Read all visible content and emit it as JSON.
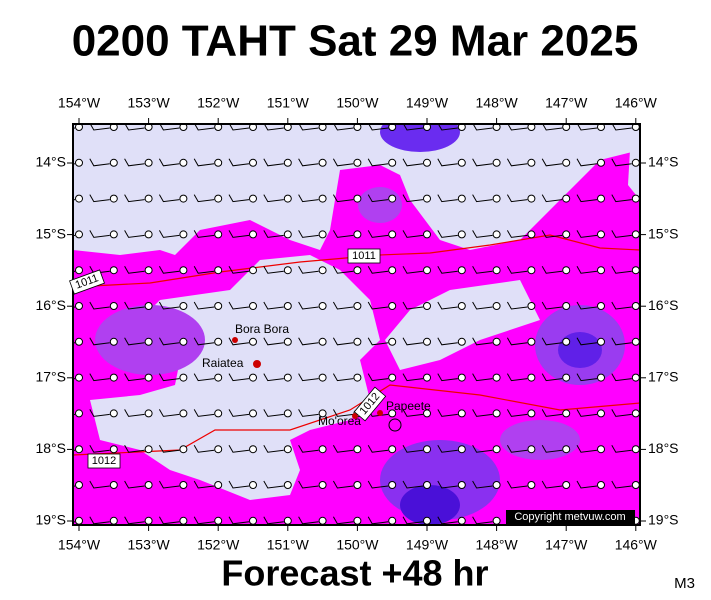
{
  "header": {
    "title": "0200 TAHT Sat 29 Mar 2025"
  },
  "map": {
    "lon_labels": [
      "154°W",
      "153°W",
      "152°W",
      "151°W",
      "150°W",
      "149°W",
      "148°W",
      "147°W",
      "146°W"
    ],
    "lat_labels": [
      "14°S",
      "15°S",
      "16°S",
      "17°S",
      "18°S",
      "19°S"
    ],
    "places": [
      {
        "label": "Bora Bora"
      },
      {
        "label": "Raiatea"
      },
      {
        "label": "Papeete"
      },
      {
        "label": "Mo'orea"
      }
    ],
    "isobars": [
      {
        "label": "1011"
      },
      {
        "label": "1011"
      },
      {
        "label": "1012"
      },
      {
        "label": "1012"
      }
    ],
    "copyright": "Copyright metvuw.com"
  },
  "footer": {
    "forecast": "Forecast +48 hr",
    "model": "M3"
  }
}
